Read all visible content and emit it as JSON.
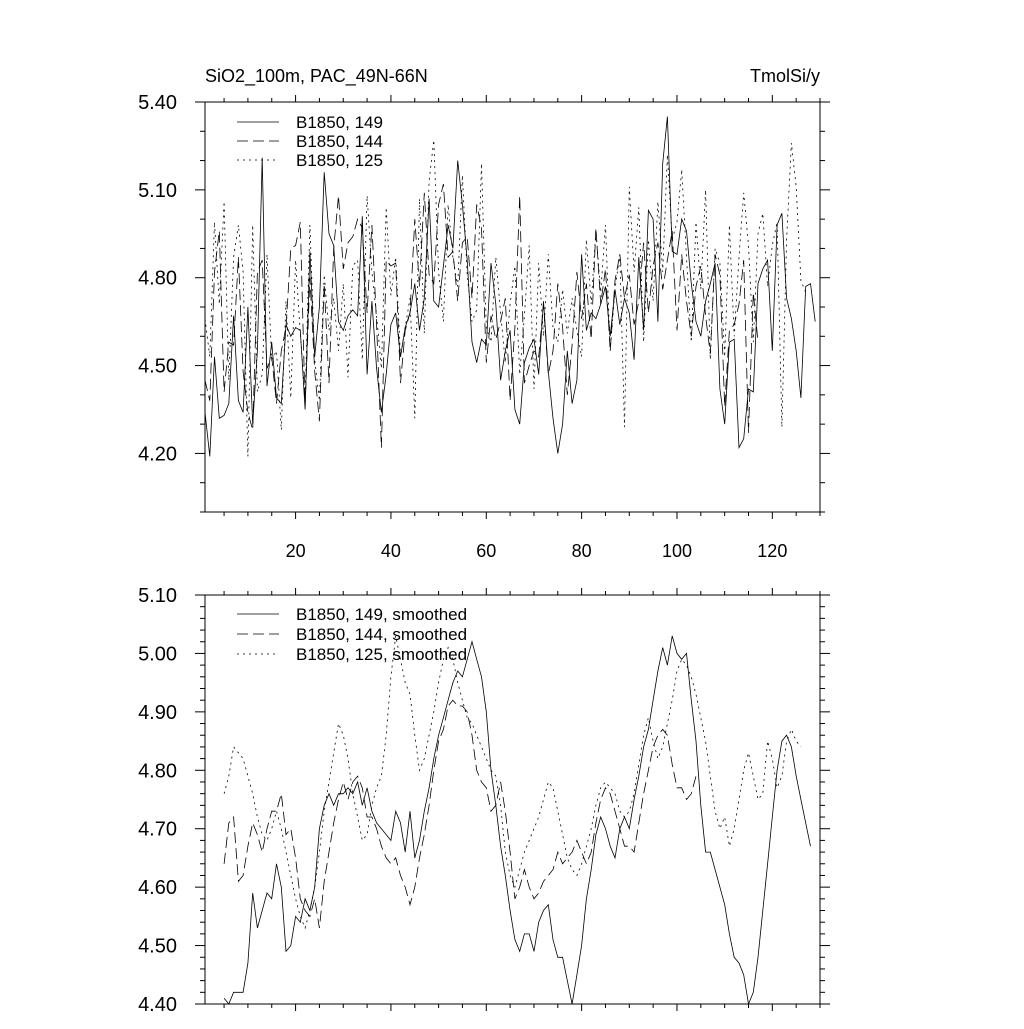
{
  "header": {
    "left_title": "SiO2_100m, PAC_49N-66N",
    "right_title": "TmolSi/y"
  },
  "chart_data": [
    {
      "type": "line",
      "title": "SiO2_100m, PAC_49N-66N",
      "units": "TmolSi/y",
      "xlim": [
        1,
        130
      ],
      "ylim": [
        4.0,
        5.4
      ],
      "x_ticks": [
        20,
        40,
        60,
        80,
        100,
        120
      ],
      "x_tick_labels": [
        "20",
        "40",
        "60",
        "80",
        "100",
        "120"
      ],
      "y_ticks": [
        4.2,
        4.5,
        4.8,
        5.1,
        5.4
      ],
      "y_tick_labels": [
        "4.20",
        "4.50",
        "4.80",
        "5.10",
        "5.40"
      ],
      "legend_position": "top-left",
      "series": [
        {
          "name": "B1850, 149",
          "dash": "solid",
          "x_start": 1,
          "x_step": 1,
          "values": [
            4.34,
            4.19,
            4.53,
            4.32,
            4.33,
            4.37,
            4.67,
            4.38,
            4.34,
            4.7,
            4.3,
            4.55,
            5.21,
            4.43,
            4.58,
            4.39,
            4.37,
            4.64,
            4.6,
            4.63,
            4.62,
            4.35,
            4.89,
            4.53,
            4.7,
            5.16,
            4.95,
            4.91,
            4.65,
            4.62,
            4.67,
            4.69,
            4.67,
            5.01,
            4.47,
            4.72,
            4.49,
            4.34,
            4.47,
            4.64,
            4.68,
            4.53,
            4.63,
            4.68,
            4.78,
            4.62,
            4.73,
            5.07,
            4.72,
            4.7,
            4.84,
            4.98,
            4.9,
            5.2,
            5.05,
            4.86,
            4.58,
            4.51,
            4.59,
            4.57,
            4.85,
            4.71,
            4.45,
            4.55,
            4.62,
            4.35,
            4.3,
            4.51,
            4.56,
            4.59,
            4.47,
            4.72,
            4.48,
            4.32,
            4.2,
            4.3,
            4.55,
            4.37,
            4.45,
            4.88,
            4.62,
            4.68,
            4.66,
            4.71,
            4.77,
            4.6,
            4.76,
            4.64,
            4.73,
            4.68,
            4.52,
            4.87,
            4.62,
            5.03,
            5.0,
            4.65,
            5.19,
            5.35,
            4.89,
            4.88,
            5.0,
            4.96,
            4.78,
            4.65,
            4.6,
            4.72,
            4.78,
            4.85,
            4.42,
            4.3,
            4.58,
            4.59,
            4.22,
            4.25,
            4.42,
            4.41,
            4.78,
            4.83,
            4.86,
            4.55,
            4.98,
            5.02,
            4.73,
            4.66,
            4.55,
            4.39,
            4.77,
            4.78,
            4.65
          ]
        },
        {
          "name": "B1850, 144",
          "dash": "dash",
          "x_start": 1,
          "x_step": 1,
          "values": [
            4.45,
            4.38,
            4.82,
            4.96,
            4.41,
            4.58,
            4.57,
            4.87,
            4.48,
            4.34,
            4.28,
            4.82,
            4.86,
            4.49,
            4.53,
            4.37,
            4.55,
            4.63,
            4.9,
            4.91,
            4.99,
            4.36,
            4.8,
            4.48,
            4.31,
            4.78,
            4.44,
            4.9,
            5.08,
            4.83,
            4.92,
            4.94,
            5.0,
            4.97,
            4.68,
            4.98,
            4.64,
            4.22,
            4.86,
            4.84,
            4.85,
            4.44,
            4.62,
            4.68,
            5.0,
            4.77,
            5.09,
            4.81,
            4.78,
            5.05,
            5.12,
            4.87,
            4.89,
            4.72,
            4.92,
            4.94,
            4.73,
            5.05,
            4.97,
            4.51,
            4.67,
            4.59,
            4.65,
            4.73,
            4.38,
            4.63,
            5.08,
            4.44,
            4.5,
            4.55,
            4.53,
            4.71,
            4.47,
            4.55,
            4.78,
            4.63,
            4.4,
            4.57,
            4.82,
            4.66,
            4.78,
            4.59,
            4.97,
            4.71,
            4.83,
            4.55,
            4.79,
            4.88,
            4.73,
            4.81,
            4.64,
            4.72,
            4.92,
            4.68,
            4.84,
            4.92,
            4.76,
            4.86,
            4.96,
            4.62,
            4.88,
            4.72,
            4.6,
            4.77,
            4.84,
            4.67,
            4.54,
            4.88,
            4.81,
            4.36,
            4.62,
            4.64,
            4.71,
            4.86,
            4.27,
            4.75,
            4.58
          ]
        },
        {
          "name": "B1850, 125",
          "dash": "dot",
          "x_start": 1,
          "x_step": 1,
          "values": [
            4.66,
            4.53,
            4.99,
            4.71,
            5.06,
            4.45,
            4.87,
            4.98,
            4.82,
            4.19,
            4.98,
            4.41,
            4.47,
            4.88,
            4.52,
            4.55,
            4.28,
            4.72,
            4.39,
            4.86,
            4.61,
            4.39,
            4.98,
            4.52,
            4.38,
            4.81,
            4.62,
            4.73,
            4.55,
            4.78,
            4.46,
            4.84,
            4.86,
            4.52,
            5.08,
            4.82,
            4.67,
            4.49,
            5.04,
            4.74,
            4.87,
            4.53,
            4.63,
            4.73,
            4.32,
            5.07,
            4.61,
            5.13,
            5.27,
            4.82,
            4.65,
            5.05,
            4.87,
            4.77,
            5.15,
            4.81,
            4.65,
            4.69,
            5.19,
            4.63,
            4.58,
            4.87,
            4.68,
            4.51,
            4.71,
            4.84,
            4.47,
            4.67,
            4.91,
            4.42,
            4.85,
            4.6,
            4.88,
            4.63,
            4.58,
            4.76,
            4.61,
            4.73,
            4.62,
            4.53,
            4.93,
            4.71,
            4.96,
            4.75,
            4.98,
            4.55,
            4.76,
            4.88,
            4.29,
            5.11,
            4.82,
            5.04,
            4.58,
            4.93,
            4.72,
            5.06,
            4.82,
            5.22,
            4.93,
            4.99,
            5.17,
            4.87,
            4.58,
            4.99,
            4.76,
            5.1,
            4.52,
            4.9,
            4.85,
            4.53,
            4.98,
            4.6,
            4.87,
            5.09,
            4.91,
            4.58,
            4.95,
            5.02,
            4.77,
            4.91,
            4.99,
            4.29,
            4.93,
            5.26,
            5.11,
            4.79,
            4.75
          ]
        }
      ]
    },
    {
      "type": "line",
      "xlim": [
        1,
        130
      ],
      "ylim": [
        4.4,
        5.1
      ],
      "x_ticks": [
        20,
        40,
        60,
        80,
        100,
        120
      ],
      "y_ticks": [
        4.4,
        4.5,
        4.6,
        4.7,
        4.8,
        4.9,
        5.0,
        5.1
      ],
      "y_tick_labels": [
        "4.40",
        "4.50",
        "4.60",
        "4.70",
        "4.80",
        "4.90",
        "5.00",
        "5.10"
      ],
      "legend_position": "top-left",
      "series": [
        {
          "name": "B1850, 149, smoothed",
          "dash": "solid",
          "x_start": 5,
          "x_step": 1,
          "values": [
            4.41,
            4.4,
            4.42,
            4.42,
            4.42,
            4.47,
            4.59,
            4.53,
            4.56,
            4.59,
            4.58,
            4.64,
            4.6,
            4.49,
            4.5,
            4.55,
            4.54,
            4.58,
            4.56,
            4.6,
            4.7,
            4.74,
            4.76,
            4.74,
            4.76,
            4.76,
            4.77,
            4.76,
            4.78,
            4.74,
            4.77,
            4.73,
            4.71,
            4.7,
            4.69,
            4.68,
            4.73,
            4.71,
            4.66,
            4.73,
            4.65,
            4.68,
            4.73,
            4.77,
            4.82,
            4.86,
            4.89,
            4.92,
            4.95,
            4.97,
            4.96,
            4.99,
            5.02,
            4.99,
            4.96,
            4.9,
            4.8,
            4.74,
            4.67,
            4.62,
            4.56,
            4.51,
            4.49,
            4.52,
            4.52,
            4.49,
            4.54,
            4.56,
            4.57,
            4.51,
            4.48,
            4.48,
            4.44,
            4.4,
            4.45,
            4.5,
            4.58,
            4.63,
            4.69,
            4.72,
            4.7,
            4.67,
            4.65,
            4.7,
            4.72,
            4.7,
            4.75,
            4.79,
            4.84,
            4.87,
            4.92,
            4.97,
            5.01,
            4.98,
            5.03,
            5.0,
            4.99,
            5.0,
            4.92,
            4.85,
            4.74,
            4.66,
            4.66,
            4.63,
            4.6,
            4.57,
            4.52,
            4.48,
            4.47,
            4.45,
            4.4,
            4.42,
            4.48,
            4.56,
            4.64,
            4.72,
            4.8,
            4.85,
            4.86,
            4.84,
            4.79,
            4.75,
            4.71,
            4.67
          ]
        },
        {
          "name": "B1850, 144, smoothed",
          "dash": "dash",
          "x_start": 5,
          "x_step": 1,
          "values": [
            4.64,
            4.71,
            4.72,
            4.61,
            4.62,
            4.67,
            4.71,
            4.69,
            4.66,
            4.7,
            4.73,
            4.73,
            4.76,
            4.69,
            4.7,
            4.65,
            4.58,
            4.56,
            4.55,
            4.58,
            4.53,
            4.61,
            4.66,
            4.71,
            4.75,
            4.78,
            4.75,
            4.78,
            4.79,
            4.77,
            4.72,
            4.72,
            4.7,
            4.67,
            4.65,
            4.64,
            4.65,
            4.62,
            4.6,
            4.57,
            4.6,
            4.65,
            4.69,
            4.74,
            4.8,
            4.85,
            4.87,
            4.91,
            4.92,
            4.91,
            4.91,
            4.9,
            4.86,
            4.8,
            4.78,
            4.77,
            4.73,
            4.74,
            4.78,
            4.73,
            4.66,
            4.58,
            4.6,
            4.63,
            4.6,
            4.58,
            4.59,
            4.61,
            4.62,
            4.63,
            4.66,
            4.64,
            4.65,
            4.66,
            4.68,
            4.66,
            4.64,
            4.66,
            4.71,
            4.75,
            4.77,
            4.76,
            4.73,
            4.7,
            4.67,
            4.67,
            4.66,
            4.71,
            4.76,
            4.8,
            4.84,
            4.86,
            4.87,
            4.86,
            4.81,
            4.77,
            4.77,
            4.75,
            4.76,
            4.79
          ]
        },
        {
          "name": "B1850, 125, smoothed",
          "dash": "dot",
          "x_start": 5,
          "x_step": 1,
          "values": [
            4.76,
            4.79,
            4.84,
            4.83,
            4.82,
            4.79,
            4.76,
            4.72,
            4.69,
            4.68,
            4.7,
            4.73,
            4.7,
            4.66,
            4.62,
            4.58,
            4.55,
            4.53,
            4.56,
            4.6,
            4.66,
            4.73,
            4.78,
            4.83,
            4.88,
            4.86,
            4.82,
            4.76,
            4.72,
            4.68,
            4.69,
            4.74,
            4.77,
            4.79,
            4.86,
            4.96,
            5.03,
            4.99,
            4.95,
            4.93,
            4.86,
            4.8,
            4.82,
            4.86,
            4.9,
            4.95,
            4.99,
            5.01,
            4.99,
            4.95,
            4.92,
            4.89,
            4.88,
            4.86,
            4.84,
            4.82,
            4.8,
            4.79,
            4.74,
            4.66,
            4.62,
            4.6,
            4.63,
            4.66,
            4.68,
            4.7,
            4.72,
            4.75,
            4.78,
            4.77,
            4.73,
            4.69,
            4.65,
            4.63,
            4.62,
            4.64,
            4.67,
            4.7,
            4.74,
            4.77,
            4.78,
            4.77,
            4.76,
            4.73,
            4.72,
            4.73,
            4.76,
            4.81,
            4.86,
            4.89,
            4.85,
            4.82,
            4.84,
            4.88,
            4.92,
            4.97,
            4.99,
            4.98,
            4.96,
            4.93,
            4.89,
            4.85,
            4.79,
            4.73,
            4.7,
            4.72,
            4.67,
            4.7,
            4.75,
            4.8,
            4.83,
            4.79,
            4.75,
            4.76,
            4.85,
            4.82,
            4.77,
            4.79,
            4.85,
            4.87,
            4.85,
            4.84
          ]
        }
      ]
    }
  ]
}
